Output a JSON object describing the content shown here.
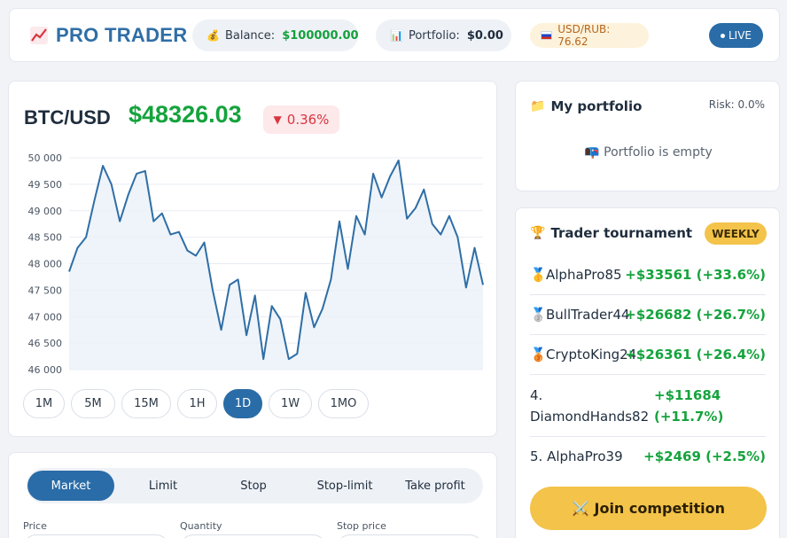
{
  "header": {
    "logo_icon": "chart-up-icon",
    "logo": "PRO TRADER",
    "balance_label": "Balance:",
    "balance_value": "$100000.00",
    "portfolio_label": "Portfolio:",
    "portfolio_value": "$0.00",
    "rate": "USD/RUB: 76.62",
    "live": "LIVE"
  },
  "ticker": {
    "pair": "BTC/USD",
    "price": "$48326.03",
    "change": "0.36%",
    "direction": "down"
  },
  "timeframes": [
    "1M",
    "5M",
    "15M",
    "1H",
    "1D",
    "1W",
    "1MO"
  ],
  "active_timeframe": "1D",
  "order": {
    "tabs": [
      "Market",
      "Limit",
      "Stop",
      "Stop-limit",
      "Take profit"
    ],
    "active_tab": "Market",
    "fields": [
      "Price",
      "Quantity",
      "Stop price"
    ]
  },
  "portfolio": {
    "title": "My portfolio",
    "risk": "Risk: 0.0%",
    "empty": "Portfolio is empty"
  },
  "tournament": {
    "title": "Trader tournament",
    "badge": "WEEKLY",
    "leaders": [
      {
        "name": "AlphaPro85",
        "gain": "+$33561 (+33.6%)",
        "medal": "gold-medal-icon"
      },
      {
        "name": "BullTrader44",
        "gain": "+$26682 (+26.7%)",
        "medal": "silver-medal-icon"
      },
      {
        "name": "CryptoKing24",
        "gain": "+$26361 (+26.4%)",
        "medal": "bronze-medal-icon"
      },
      {
        "name": "4. DiamondHands82",
        "gain": "+$11684 (+11.7%)"
      },
      {
        "name": "5. AlphaPro39",
        "gain": "+$2469 (+2.5%)"
      }
    ],
    "join": "⚔️ Join competition"
  },
  "colors": {
    "accent": "#2a6ca7",
    "positive": "#15a33d",
    "negative": "#d9353f",
    "gold": "#f3c34a"
  },
  "chart_data": {
    "type": "line",
    "ylim": [
      46000,
      50000
    ],
    "yticks": [
      "50 000",
      "49 500",
      "49 000",
      "48 500",
      "48 000",
      "47 500",
      "47 000",
      "46 500",
      "46 000"
    ],
    "grid": true,
    "values": [
      47850,
      48300,
      48500,
      49200,
      49850,
      49500,
      48800,
      49300,
      49700,
      49750,
      48800,
      48950,
      48550,
      48600,
      48250,
      48150,
      48400,
      47500,
      46750,
      47600,
      47700,
      46650,
      47400,
      46200,
      47200,
      46950,
      46200,
      46300,
      47450,
      46800,
      47150,
      47700,
      48800,
      47900,
      48900,
      48550,
      49700,
      49250,
      49650,
      49950,
      48850,
      49050,
      49400,
      48750,
      48550,
      48900,
      48500,
      47550,
      48300,
      47600
    ]
  }
}
